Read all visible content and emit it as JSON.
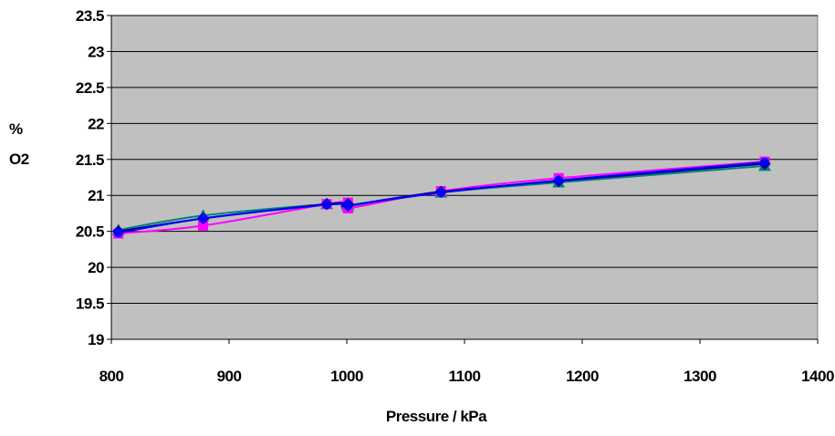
{
  "chart_data": {
    "type": "line",
    "title": "",
    "xlabel": "Pressure / kPa",
    "ylabel_line1": "%",
    "ylabel_line2": "O2",
    "xlim": [
      800,
      1400
    ],
    "ylim": [
      19,
      23.5
    ],
    "x_ticks": [
      800,
      900,
      1000,
      1100,
      1200,
      1300,
      1400
    ],
    "y_ticks": [
      19,
      19.5,
      20,
      20.5,
      21,
      21.5,
      22,
      22.5,
      23,
      23.5
    ],
    "y_tick_labels": [
      "19",
      "19.5",
      "20",
      "20.5",
      "21",
      "21.5",
      "22",
      "22.5",
      "23",
      "23.5"
    ],
    "grid": "horizontal",
    "legend": "none",
    "plot_background": "#C0C0C0",
    "series": [
      {
        "color": "#008080",
        "marker": "triangle",
        "x": [
          806,
          878,
          983,
          1001,
          1001,
          1080,
          1180,
          1355
        ],
        "y": [
          20.52,
          20.72,
          20.88,
          20.88,
          20.85,
          21.04,
          21.18,
          21.41
        ]
      },
      {
        "color": "#FF00FF",
        "marker": "square",
        "x": [
          806,
          878,
          983,
          1001,
          1001,
          1080,
          1180,
          1355
        ],
        "y": [
          20.47,
          20.58,
          20.88,
          20.9,
          20.82,
          21.06,
          21.24,
          21.47
        ]
      },
      {
        "color": "#000080",
        "marker": "diamond",
        "x": [
          806,
          878,
          983,
          1001,
          1001,
          1080,
          1180,
          1355
        ],
        "y": [
          20.5,
          20.68,
          20.88,
          20.88,
          20.86,
          21.05,
          21.2,
          21.44
        ]
      },
      {
        "color": "#0000FF",
        "marker": "circle",
        "x": [
          806,
          878,
          983,
          1001,
          1001,
          1080,
          1180,
          1355
        ],
        "y": [
          20.48,
          20.68,
          20.87,
          20.86,
          20.86,
          21.04,
          21.21,
          21.46
        ]
      }
    ]
  }
}
